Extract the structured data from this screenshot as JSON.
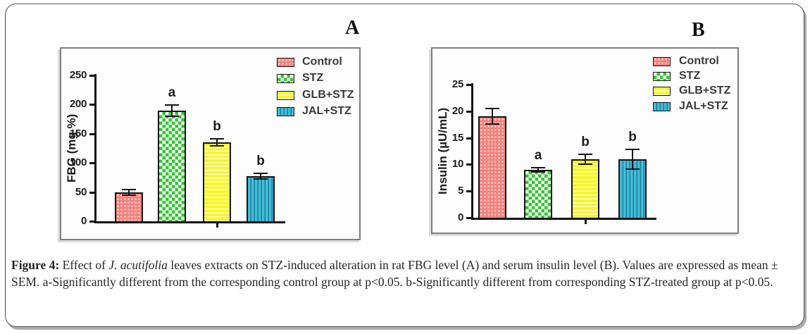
{
  "figure": {
    "panel_a_label": "A",
    "panel_b_label": "B"
  },
  "caption": {
    "prefix": "Figure 4:",
    "body_1": " Effect of ",
    "italic": "J. acutifolia",
    "body_2": " leaves extracts on STZ-induced alteration in rat FBG level (A) and serum insulin level (B). Values are expressed as mean ± SEM. a-Significantly different from the corresponding control group at p<0.05. b-Significantly different from corresponding STZ-treated group at p<0.05."
  },
  "colors": {
    "control": "#f2827e",
    "stz": "#2ec82e",
    "glb": "#f6f62b",
    "jal": "#41bed9",
    "axis": "#141414",
    "legend_text": "#3a3a3a"
  },
  "chart_data": [
    {
      "type": "bar",
      "panel": "A",
      "title": "",
      "xlabel": "",
      "ylabel": "FBG (mg %)",
      "ylim": [
        0,
        250
      ],
      "yticks": [
        0,
        50,
        100,
        150,
        200,
        250
      ],
      "categories": [
        "Control",
        "STZ",
        "GLB+STZ",
        "JAL+STZ"
      ],
      "values": [
        50,
        190,
        135,
        77
      ],
      "errors": [
        6,
        11,
        7,
        6
      ],
      "sig_labels": [
        "",
        "a",
        "b",
        "b"
      ],
      "legend": [
        "Control",
        "STZ",
        "GLB+STZ",
        "JAL+STZ"
      ],
      "legend_position": "upper right",
      "grid": false
    },
    {
      "type": "bar",
      "panel": "B",
      "title": "",
      "xlabel": "",
      "ylabel": "Insulin (µU/mL)",
      "ylim": [
        0,
        25
      ],
      "yticks": [
        0,
        5,
        10,
        15,
        20,
        25
      ],
      "categories": [
        "Control",
        "STZ",
        "GLB+STZ",
        "JAL+STZ"
      ],
      "values": [
        19,
        9,
        11,
        11
      ],
      "errors": [
        1.6,
        0.5,
        1.1,
        2
      ],
      "sig_labels": [
        "",
        "a",
        "b",
        "b"
      ],
      "legend": [
        "Control",
        "STZ",
        "GLB+STZ",
        "JAL+STZ"
      ],
      "legend_position": "upper right",
      "grid": false
    }
  ]
}
